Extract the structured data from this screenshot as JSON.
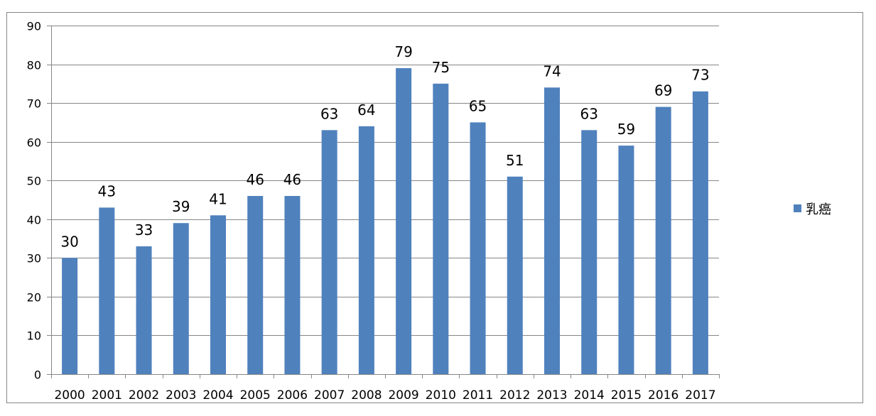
{
  "chart_data": {
    "type": "bar",
    "categories": [
      "2000",
      "2001",
      "2002",
      "2003",
      "2004",
      "2005",
      "2006",
      "2007",
      "2008",
      "2009",
      "2010",
      "2011",
      "2012",
      "2013",
      "2014",
      "2015",
      "2016",
      "2017"
    ],
    "series": [
      {
        "name": "乳癌",
        "values": [
          30,
          43,
          33,
          39,
          41,
          46,
          46,
          63,
          64,
          79,
          75,
          65,
          51,
          74,
          63,
          59,
          69,
          73
        ]
      }
    ],
    "ylim": [
      0,
      90
    ],
    "yticks": [
      0,
      10,
      20,
      30,
      40,
      50,
      60,
      70,
      80,
      90
    ],
    "grid": true,
    "legend": "right",
    "data_labels": true,
    "colors": {
      "bar": "#4f81bd",
      "grid": "#868686",
      "axis": "#868686",
      "border": "#868686",
      "text": "#000000"
    }
  }
}
